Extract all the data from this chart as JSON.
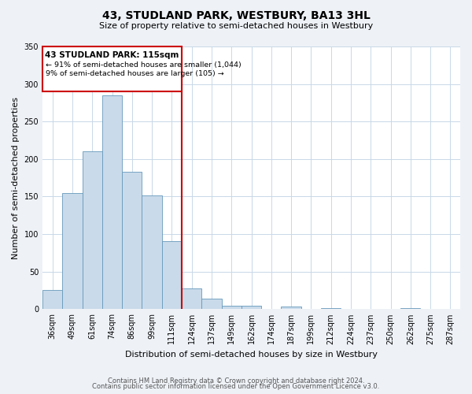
{
  "title": "43, STUDLAND PARK, WESTBURY, BA13 3HL",
  "subtitle": "Size of property relative to semi-detached houses in Westbury",
  "xlabel": "Distribution of semi-detached houses by size in Westbury",
  "ylabel": "Number of semi-detached properties",
  "bin_labels": [
    "36sqm",
    "49sqm",
    "61sqm",
    "74sqm",
    "86sqm",
    "99sqm",
    "111sqm",
    "124sqm",
    "137sqm",
    "149sqm",
    "162sqm",
    "174sqm",
    "187sqm",
    "199sqm",
    "212sqm",
    "224sqm",
    "237sqm",
    "250sqm",
    "262sqm",
    "275sqm",
    "287sqm"
  ],
  "bar_values": [
    25,
    155,
    210,
    285,
    183,
    152,
    91,
    28,
    14,
    5,
    5,
    0,
    3,
    0,
    1,
    0,
    0,
    0,
    1,
    0,
    0
  ],
  "bar_color": "#c9daea",
  "bar_edge_color": "#6699bb",
  "vline_color": "#cc0000",
  "annotation_title": "43 STUDLAND PARK: 115sqm",
  "annotation_line1": "← 91% of semi-detached houses are smaller (1,044)",
  "annotation_line2": "9% of semi-detached houses are larger (105) →",
  "annotation_box_color": "#cc0000",
  "footer_line1": "Contains HM Land Registry data © Crown copyright and database right 2024.",
  "footer_line2": "Contains public sector information licensed under the Open Government Licence v3.0.",
  "background_color": "#eef2f7",
  "plot_bg_color": "#ffffff",
  "ylim": [
    0,
    350
  ],
  "yticks": [
    0,
    50,
    100,
    150,
    200,
    250,
    300,
    350
  ],
  "title_fontsize": 10,
  "subtitle_fontsize": 8,
  "ylabel_fontsize": 8,
  "xlabel_fontsize": 8,
  "tick_fontsize": 7,
  "footer_fontsize": 6
}
